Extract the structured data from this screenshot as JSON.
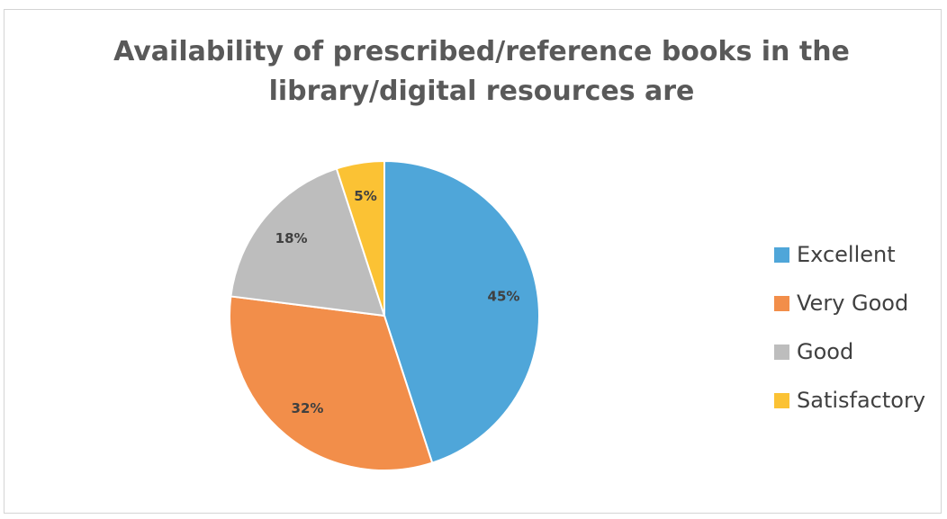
{
  "chart_data": {
    "type": "pie",
    "title_lines": [
      "Availability of prescribed/reference books in the",
      "library/digital resources are"
    ],
    "categories": [
      "Excellent",
      "Very Good",
      "Good",
      "Satisfactory"
    ],
    "values": [
      45,
      32,
      18,
      5
    ],
    "labels": [
      "45%",
      "32%",
      "18%",
      "5%"
    ],
    "colors": [
      "#4FA6D9",
      "#F28E4A",
      "#BDBDBD",
      "#FBC234"
    ],
    "legend_position": "right"
  }
}
